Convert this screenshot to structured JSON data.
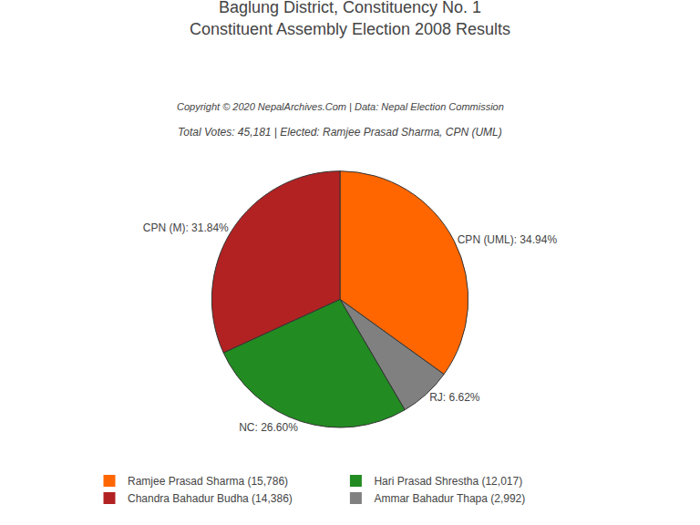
{
  "chart_data": {
    "type": "pie",
    "title": "Baglung District, Constituency No. 1\nConstituent Assembly Election 2008 Results",
    "annotations": [
      "Copyright © 2020 NepalArchives.Com | Data: Nepal Election Commission",
      "Total Votes: 45,181 | Elected: Ramjee Prasad Sharma, CPN (UML)"
    ],
    "categories": [
      "CPN (UML)",
      "RJ",
      "NC",
      "CPN (M)"
    ],
    "values": [
      34.94,
      6.62,
      26.6,
      31.84
    ],
    "value_labels": [
      "CPN (UML): 34.94%",
      "RJ: 6.62%",
      "NC: 26.60%",
      "CPN (M): 31.84%"
    ],
    "colors": [
      "#FF6600",
      "#808080",
      "#228B22",
      "#B22222"
    ],
    "data_labels": true,
    "legend": "bottom",
    "series": [
      {
        "name": "Ramjee Prasad Sharma (15,786)",
        "color": "#FF6600"
      },
      {
        "name": "Hari Prasad Shrestha (12,017)",
        "color": "#228B22"
      },
      {
        "name": "Chandra Bahadur Budha (14,386)",
        "color": "#B22222"
      },
      {
        "name": "Ammar Bahadur Thapa (2,992)",
        "color": "#808080"
      }
    ]
  }
}
